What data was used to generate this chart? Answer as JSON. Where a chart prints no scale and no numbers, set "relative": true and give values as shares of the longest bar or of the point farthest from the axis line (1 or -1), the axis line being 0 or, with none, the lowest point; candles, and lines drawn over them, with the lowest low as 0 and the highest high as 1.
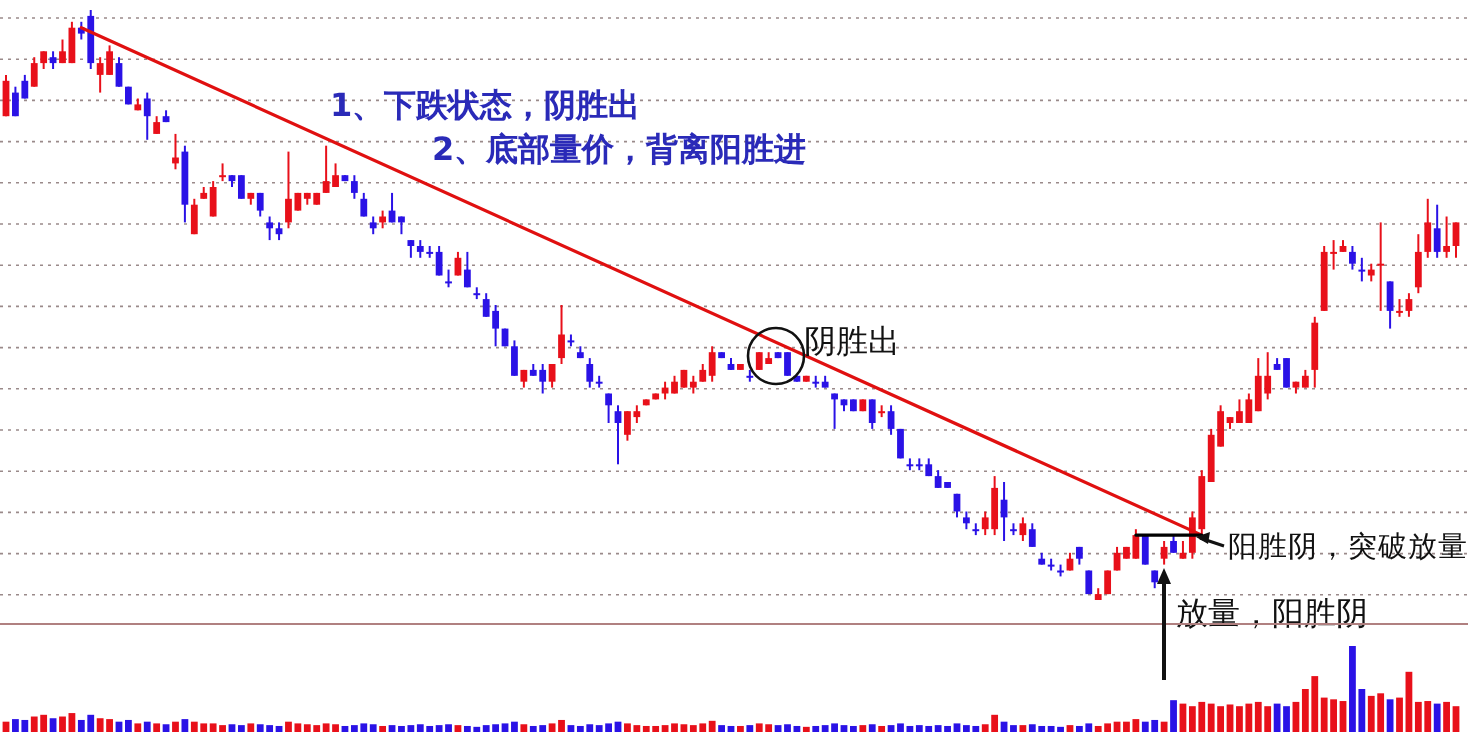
{
  "chart_data": [
    {
      "type": "candlestick",
      "relative": true,
      "grid": true,
      "categories": [
        null,
        null,
        null,
        null,
        null,
        null,
        null,
        null,
        null,
        null,
        null,
        null,
        null,
        null,
        null,
        null,
        null,
        null,
        null,
        null,
        null,
        null,
        null,
        null,
        null,
        null,
        null,
        null,
        null,
        null,
        null,
        null,
        null,
        null,
        null,
        null,
        null,
        null,
        null,
        null,
        null,
        null,
        null,
        null,
        null,
        null,
        null,
        null,
        null,
        null,
        null,
        null,
        null,
        null,
        null,
        null,
        null,
        null,
        null,
        null,
        null,
        null,
        null,
        null,
        null,
        null,
        null,
        null,
        null,
        null,
        null,
        null,
        null,
        null,
        null,
        null,
        null,
        null,
        null,
        null,
        null,
        null,
        null,
        null,
        null,
        null,
        null,
        null,
        null,
        null,
        null,
        null,
        null,
        null,
        null,
        null,
        null,
        null,
        null,
        null,
        null,
        null,
        null,
        null,
        null,
        null,
        null,
        null,
        null,
        null,
        null,
        null,
        null,
        null,
        null,
        null,
        null,
        null,
        null,
        null,
        null,
        null,
        null,
        null,
        null,
        null,
        null,
        null,
        null,
        null,
        null,
        null,
        null,
        null,
        null,
        null,
        null,
        null,
        null,
        null,
        null,
        null,
        null,
        null,
        null,
        null,
        null,
        null,
        null,
        null,
        null,
        null,
        null,
        null,
        null
      ],
      "ohlc": [
        [
          0.82,
          0.89,
          0.82,
          0.88
        ],
        [
          0.86,
          0.87,
          0.82,
          0.82
        ],
        [
          0.88,
          0.89,
          0.85,
          0.85
        ],
        [
          0.87,
          0.92,
          0.87,
          0.91
        ],
        [
          0.91,
          0.93,
          0.9,
          0.93
        ],
        [
          0.92,
          0.93,
          0.9,
          0.91
        ],
        [
          0.91,
          0.95,
          0.91,
          0.93
        ],
        [
          0.91,
          0.98,
          0.91,
          0.97
        ],
        [
          0.97,
          0.98,
          0.95,
          0.96
        ],
        [
          0.99,
          1.0,
          0.9,
          0.91
        ],
        [
          0.89,
          0.92,
          0.86,
          0.91
        ],
        [
          0.89,
          0.94,
          0.89,
          0.93
        ],
        [
          0.91,
          0.92,
          0.87,
          0.87
        ],
        [
          0.87,
          0.87,
          0.84,
          0.84
        ],
        [
          0.83,
          0.85,
          0.83,
          0.84
        ],
        [
          0.85,
          0.86,
          0.78,
          0.82
        ],
        [
          0.79,
          0.82,
          0.79,
          0.81
        ],
        [
          0.82,
          0.83,
          0.81,
          0.81
        ],
        [
          0.74,
          0.79,
          0.73,
          0.75
        ],
        [
          0.76,
          0.77,
          0.64,
          0.67
        ],
        [
          0.62,
          0.68,
          0.62,
          0.67
        ],
        [
          0.68,
          0.7,
          0.68,
          0.69
        ],
        [
          0.65,
          0.71,
          0.65,
          0.7
        ],
        [
          0.72,
          0.74,
          0.71,
          0.72
        ],
        [
          0.72,
          0.72,
          0.7,
          0.71
        ],
        [
          0.72,
          0.72,
          0.68,
          0.68
        ],
        [
          0.68,
          0.69,
          0.67,
          0.69
        ],
        [
          0.69,
          0.69,
          0.65,
          0.66
        ],
        [
          0.64,
          0.65,
          0.61,
          0.63
        ],
        [
          0.63,
          0.64,
          0.61,
          0.62
        ],
        [
          0.64,
          0.76,
          0.63,
          0.68
        ],
        [
          0.66,
          0.69,
          0.66,
          0.69
        ],
        [
          0.68,
          0.69,
          0.67,
          0.69
        ],
        [
          0.67,
          0.69,
          0.67,
          0.69
        ],
        [
          0.69,
          0.77,
          0.69,
          0.71
        ],
        [
          0.7,
          0.74,
          0.7,
          0.72
        ],
        [
          0.72,
          0.72,
          0.71,
          0.71
        ],
        [
          0.71,
          0.72,
          0.68,
          0.69
        ],
        [
          0.68,
          0.69,
          0.65,
          0.65
        ],
        [
          0.64,
          0.65,
          0.62,
          0.63
        ],
        [
          0.64,
          0.66,
          0.63,
          0.65
        ],
        [
          0.66,
          0.69,
          0.64,
          0.64
        ],
        [
          0.65,
          0.65,
          0.62,
          0.64
        ],
        [
          0.61,
          0.61,
          0.58,
          0.6
        ],
        [
          0.6,
          0.61,
          0.58,
          0.59
        ],
        [
          0.59,
          0.6,
          0.58,
          0.59
        ],
        [
          0.59,
          0.6,
          0.55,
          0.55
        ],
        [
          0.54,
          0.56,
          0.53,
          0.54
        ],
        [
          0.55,
          0.59,
          0.55,
          0.58
        ],
        [
          0.56,
          0.59,
          0.53,
          0.53
        ],
        [
          0.52,
          0.53,
          0.51,
          0.52
        ],
        [
          0.51,
          0.52,
          0.48,
          0.48
        ],
        [
          0.49,
          0.5,
          0.43,
          0.46
        ],
        [
          0.46,
          0.46,
          0.43,
          0.43
        ],
        [
          0.43,
          0.44,
          0.38,
          0.38
        ],
        [
          0.37,
          0.39,
          0.36,
          0.39
        ],
        [
          0.39,
          0.4,
          0.38,
          0.38
        ],
        [
          0.39,
          0.4,
          0.35,
          0.37
        ],
        [
          0.37,
          0.4,
          0.36,
          0.4
        ],
        [
          0.41,
          0.5,
          0.4,
          0.45
        ],
        [
          0.44,
          0.45,
          0.43,
          0.44
        ],
        [
          0.42,
          0.43,
          0.41,
          0.41
        ],
        [
          0.4,
          0.41,
          0.36,
          0.37
        ],
        [
          0.37,
          0.38,
          0.36,
          0.37
        ],
        [
          0.35,
          0.35,
          0.3,
          0.33
        ],
        [
          0.32,
          0.33,
          0.23,
          0.3
        ],
        [
          0.28,
          0.32,
          0.27,
          0.32
        ],
        [
          0.31,
          0.33,
          0.3,
          0.32
        ],
        [
          0.33,
          0.34,
          0.33,
          0.34
        ],
        [
          0.34,
          0.35,
          0.34,
          0.35
        ],
        [
          0.35,
          0.37,
          0.34,
          0.36
        ],
        [
          0.35,
          0.38,
          0.35,
          0.37
        ],
        [
          0.36,
          0.39,
          0.36,
          0.39
        ],
        [
          0.36,
          0.38,
          0.35,
          0.37
        ],
        [
          0.37,
          0.4,
          0.37,
          0.39
        ],
        [
          0.38,
          0.43,
          0.37,
          0.42
        ],
        [
          0.42,
          0.42,
          0.41,
          0.41
        ],
        [
          0.4,
          0.41,
          0.39,
          0.39
        ],
        [
          0.39,
          0.4,
          0.39,
          0.4
        ],
        [
          0.38,
          0.39,
          0.37,
          0.38
        ],
        [
          0.39,
          0.42,
          0.39,
          0.42
        ],
        [
          0.4,
          0.42,
          0.4,
          0.41
        ],
        [
          0.42,
          0.42,
          0.41,
          0.41
        ],
        [
          0.42,
          0.42,
          0.38,
          0.38
        ],
        [
          0.38,
          0.38,
          0.37,
          0.37
        ],
        [
          0.37,
          0.38,
          0.37,
          0.38
        ],
        [
          0.37,
          0.38,
          0.36,
          0.37
        ],
        [
          0.37,
          0.38,
          0.36,
          0.36
        ],
        [
          0.35,
          0.35,
          0.29,
          0.34
        ],
        [
          0.34,
          0.34,
          0.32,
          0.33
        ],
        [
          0.34,
          0.34,
          0.32,
          0.32
        ],
        [
          0.32,
          0.34,
          0.32,
          0.34
        ],
        [
          0.34,
          0.34,
          0.29,
          0.3
        ],
        [
          0.32,
          0.33,
          0.31,
          0.32
        ],
        [
          0.32,
          0.33,
          0.28,
          0.29
        ],
        [
          0.29,
          0.29,
          0.24,
          0.24
        ],
        [
          0.23,
          0.24,
          0.22,
          0.23
        ],
        [
          0.23,
          0.24,
          0.22,
          0.23
        ],
        [
          0.23,
          0.24,
          0.21,
          0.21
        ],
        [
          0.21,
          0.22,
          0.19,
          0.19
        ],
        [
          0.2,
          0.2,
          0.19,
          0.19
        ],
        [
          0.18,
          0.18,
          0.14,
          0.15
        ],
        [
          0.14,
          0.15,
          0.12,
          0.13
        ],
        [
          0.12,
          0.13,
          0.11,
          0.12
        ],
        [
          0.12,
          0.15,
          0.11,
          0.14
        ],
        [
          0.12,
          0.21,
          0.11,
          0.19
        ],
        [
          0.17,
          0.2,
          0.1,
          0.14
        ],
        [
          0.12,
          0.13,
          0.11,
          0.12
        ],
        [
          0.11,
          0.14,
          0.1,
          0.13
        ],
        [
          0.12,
          0.13,
          0.09,
          0.09
        ],
        [
          0.07,
          0.08,
          0.06,
          0.06
        ],
        [
          0.06,
          0.07,
          0.05,
          0.06
        ],
        [
          0.05,
          0.06,
          0.04,
          0.05
        ],
        [
          0.05,
          0.08,
          0.05,
          0.07
        ],
        [
          0.09,
          0.09,
          0.06,
          0.07
        ],
        [
          0.05,
          0.05,
          0.01,
          0.01
        ],
        [
          0.0,
          0.02,
          0.0,
          0.01
        ],
        [
          0.01,
          0.05,
          0.01,
          0.05
        ],
        [
          0.05,
          0.09,
          0.05,
          0.08
        ],
        [
          0.07,
          0.09,
          0.07,
          0.09
        ],
        [
          0.07,
          0.12,
          0.07,
          0.11
        ],
        [
          0.11,
          0.11,
          0.06,
          0.06
        ],
        [
          0.05,
          0.05,
          0.02,
          0.03
        ],
        [
          0.07,
          0.1,
          0.06,
          0.09
        ],
        [
          0.1,
          0.11,
          0.08,
          0.08
        ],
        [
          0.07,
          0.1,
          0.07,
          0.08
        ],
        [
          0.08,
          0.15,
          0.07,
          0.14
        ],
        [
          0.12,
          0.22,
          0.11,
          0.21
        ],
        [
          0.2,
          0.29,
          0.2,
          0.28
        ],
        [
          0.26,
          0.33,
          0.26,
          0.32
        ],
        [
          0.3,
          0.31,
          0.29,
          0.31
        ],
        [
          0.3,
          0.34,
          0.3,
          0.32
        ],
        [
          0.3,
          0.35,
          0.3,
          0.34
        ],
        [
          0.32,
          0.41,
          0.32,
          0.38
        ],
        [
          0.35,
          0.42,
          0.34,
          0.38
        ],
        [
          0.4,
          0.41,
          0.39,
          0.39
        ],
        [
          0.41,
          0.41,
          0.36,
          0.36
        ],
        [
          0.36,
          0.37,
          0.35,
          0.37
        ],
        [
          0.36,
          0.39,
          0.36,
          0.38
        ],
        [
          0.39,
          0.48,
          0.36,
          0.47
        ],
        [
          0.49,
          0.6,
          0.49,
          0.59
        ],
        [
          0.59,
          0.61,
          0.56,
          0.59
        ],
        [
          0.59,
          0.61,
          0.59,
          0.6
        ],
        [
          0.59,
          0.6,
          0.56,
          0.57
        ],
        [
          0.56,
          0.58,
          0.54,
          0.56
        ],
        [
          0.55,
          0.57,
          0.54,
          0.56
        ],
        [
          0.57,
          0.64,
          0.49,
          0.57
        ],
        [
          0.54,
          0.54,
          0.46,
          0.49
        ],
        [
          0.49,
          0.51,
          0.48,
          0.49
        ],
        [
          0.49,
          0.52,
          0.48,
          0.51
        ],
        [
          0.53,
          0.62,
          0.52,
          0.59
        ],
        [
          0.59,
          0.68,
          0.58,
          0.64
        ],
        [
          0.63,
          0.67,
          0.58,
          0.59
        ],
        [
          0.59,
          0.65,
          0.58,
          0.6
        ],
        [
          0.6,
          0.64,
          0.58,
          0.64
        ]
      ],
      "colors": [
        "#e8101a",
        "#2a12e6",
        "#2a12e6",
        "#e8101a",
        "#e8101a",
        "#2a12e6",
        "#e8101a",
        "#e8101a",
        "#2a12e6",
        "#2a12e6",
        "#e8101a",
        "#e8101a",
        "#2a12e6",
        "#2a12e6",
        "#e8101a",
        "#2a12e6",
        "#e8101a",
        "#2a12e6",
        "#e8101a",
        "#2a12e6",
        "#e8101a",
        "#e8101a",
        "#e8101a",
        "#e8101a",
        "#2a12e6",
        "#2a12e6",
        "#e8101a",
        "#2a12e6",
        "#2a12e6",
        "#2a12e6",
        "#e8101a",
        "#e8101a",
        "#e8101a",
        "#e8101a",
        "#e8101a",
        "#e8101a",
        "#2a12e6",
        "#2a12e6",
        "#2a12e6",
        "#2a12e6",
        "#e8101a",
        "#2a12e6",
        "#2a12e6",
        "#2a12e6",
        "#2a12e6",
        "#2a12e6",
        "#2a12e6",
        "#2a12e6",
        "#e8101a",
        "#2a12e6",
        "#2a12e6",
        "#2a12e6",
        "#2a12e6",
        "#2a12e6",
        "#2a12e6",
        "#e8101a",
        "#2a12e6",
        "#2a12e6",
        "#e8101a",
        "#e8101a",
        "#2a12e6",
        "#2a12e6",
        "#2a12e6",
        "#2a12e6",
        "#2a12e6",
        "#2a12e6",
        "#e8101a",
        "#e8101a",
        "#e8101a",
        "#e8101a",
        "#e8101a",
        "#e8101a",
        "#e8101a",
        "#e8101a",
        "#e8101a",
        "#e8101a",
        "#2a12e6",
        "#2a12e6",
        "#e8101a",
        "#2a12e6",
        "#e8101a",
        "#e8101a",
        "#2a12e6",
        "#2a12e6",
        "#2a12e6",
        "#e8101a",
        "#2a12e6",
        "#2a12e6",
        "#2a12e6",
        "#2a12e6",
        "#2a12e6",
        "#e8101a",
        "#2a12e6",
        "#e8101a",
        "#2a12e6",
        "#2a12e6",
        "#2a12e6",
        "#2a12e6",
        "#2a12e6",
        "#2a12e6",
        "#2a12e6",
        "#2a12e6",
        "#2a12e6",
        "#2a12e6",
        "#e8101a",
        "#e8101a",
        "#2a12e6",
        "#2a12e6",
        "#e8101a",
        "#2a12e6",
        "#2a12e6",
        "#2a12e6",
        "#2a12e6",
        "#e8101a",
        "#2a12e6",
        "#2a12e6",
        "#e8101a",
        "#e8101a",
        "#e8101a",
        "#e8101a",
        "#e8101a",
        "#2a12e6",
        "#2a12e6",
        "#e8101a",
        "#2a12e6",
        "#e8101a",
        "#e8101a",
        "#e8101a",
        "#e8101a",
        "#e8101a",
        "#e8101a",
        "#e8101a",
        "#e8101a",
        "#e8101a",
        "#e8101a",
        "#2a12e6",
        "#2a12e6",
        "#e8101a",
        "#e8101a",
        "#e8101a",
        "#e8101a",
        "#e8101a",
        "#e8101a",
        "#2a12e6",
        "#2a12e6",
        "#e8101a",
        "#e8101a",
        "#2a12e6",
        "#e8101a",
        "#e8101a",
        "#e8101a",
        "#e8101a",
        "#2a12e6",
        "#e8101a",
        "#e8101a"
      ],
      "series": [
        {
          "type": "line",
          "color": "#e01010",
          "values": [
            null,
            null,
            null,
            null,
            null,
            null,
            null,
            null,
            0.97,
            null,
            null,
            null,
            null,
            null,
            null,
            null,
            null,
            null,
            null,
            null,
            null,
            null,
            null,
            null,
            null,
            null,
            null,
            null,
            null,
            null,
            null,
            null,
            null,
            null,
            null,
            null,
            null,
            null,
            null,
            null,
            null,
            null,
            null,
            null,
            null,
            null,
            null,
            null,
            null,
            null,
            null,
            null,
            null,
            null,
            null,
            null,
            null,
            null,
            null,
            null,
            null,
            null,
            null,
            null,
            null,
            null,
            null,
            null,
            null,
            null,
            null,
            null,
            null,
            null,
            null,
            null,
            null,
            null,
            null,
            null,
            null,
            null,
            null,
            null,
            null,
            null,
            null,
            null,
            null,
            null,
            null,
            null,
            null,
            null,
            null,
            null,
            null,
            null,
            null,
            null,
            null,
            null,
            null,
            null,
            null,
            null,
            null,
            null,
            null,
            null,
            null,
            null,
            null,
            null,
            null,
            null,
            null,
            null,
            null,
            null,
            null,
            null,
            null,
            null,
            null,
            null,
            null,
            0.11,
            null,
            null,
            null,
            null,
            null,
            null,
            null,
            null,
            null,
            null,
            null,
            null,
            null,
            null,
            null,
            null,
            null,
            null,
            null,
            null,
            null,
            null,
            null,
            null,
            null,
            null,
            null
          ]
        },
        {
          "type": "line",
          "color": "#000000",
          "values": [
            null,
            null,
            null,
            null,
            null,
            null,
            null,
            null,
            null,
            null,
            null,
            null,
            null,
            null,
            null,
            null,
            null,
            null,
            null,
            null,
            null,
            null,
            null,
            null,
            null,
            null,
            null,
            null,
            null,
            null,
            null,
            null,
            null,
            null,
            null,
            null,
            null,
            null,
            null,
            null,
            null,
            null,
            null,
            null,
            null,
            null,
            null,
            null,
            null,
            null,
            null,
            null,
            null,
            null,
            null,
            null,
            null,
            null,
            null,
            null,
            null,
            null,
            null,
            null,
            null,
            null,
            null,
            null,
            null,
            null,
            null,
            null,
            null,
            null,
            null,
            null,
            null,
            null,
            null,
            null,
            null,
            null,
            null,
            null,
            null,
            null,
            null,
            null,
            null,
            null,
            null,
            null,
            null,
            null,
            null,
            null,
            null,
            null,
            null,
            null,
            null,
            null,
            null,
            null,
            null,
            null,
            null,
            null,
            null,
            null,
            null,
            null,
            null,
            null,
            null,
            null,
            null,
            null,
            null,
            null,
            0.11,
            null,
            null,
            null,
            null,
            null,
            null,
            0.11,
            null,
            null,
            null,
            null,
            null,
            null,
            null,
            null,
            null,
            null,
            null,
            null,
            null,
            null,
            null,
            null,
            null,
            null,
            null,
            null,
            null,
            null,
            null,
            null,
            null,
            null,
            null
          ]
        }
      ],
      "annotations": [
        "1、下跌状态，阴胜出",
        "2、底部量价，背离阳胜进",
        "阴胜出",
        "阳胜阴，突破放量",
        "放量，阳胜阴"
      ]
    },
    {
      "type": "bar",
      "relative": true,
      "categories": [
        null,
        null,
        null,
        null,
        null,
        null,
        null,
        null,
        null,
        null,
        null,
        null,
        null,
        null,
        null,
        null,
        null,
        null,
        null,
        null,
        null,
        null,
        null,
        null,
        null,
        null,
        null,
        null,
        null,
        null,
        null,
        null,
        null,
        null,
        null,
        null,
        null,
        null,
        null,
        null,
        null,
        null,
        null,
        null,
        null,
        null,
        null,
        null,
        null,
        null,
        null,
        null,
        null,
        null,
        null,
        null,
        null,
        null,
        null,
        null,
        null,
        null,
        null,
        null,
        null,
        null,
        null,
        null,
        null,
        null,
        null,
        null,
        null,
        null,
        null,
        null,
        null,
        null,
        null,
        null,
        null,
        null,
        null,
        null,
        null,
        null,
        null,
        null,
        null,
        null,
        null,
        null,
        null,
        null,
        null,
        null,
        null,
        null,
        null,
        null,
        null,
        null,
        null,
        null,
        null,
        null,
        null,
        null,
        null,
        null,
        null,
        null,
        null,
        null,
        null,
        null,
        null,
        null,
        null,
        null,
        null,
        null,
        null,
        null,
        null,
        null,
        null,
        null,
        null,
        null,
        null,
        null,
        null,
        null,
        null,
        null,
        null,
        null,
        null,
        null,
        null,
        null,
        null,
        null,
        null,
        null,
        null,
        null,
        null,
        null,
        null,
        null,
        null,
        null,
        null
      ],
      "values": [
        0.12,
        0.15,
        0.14,
        0.18,
        0.2,
        0.16,
        0.18,
        0.22,
        0.14,
        0.2,
        0.16,
        0.15,
        0.12,
        0.14,
        0.1,
        0.12,
        0.1,
        0.09,
        0.12,
        0.15,
        0.12,
        0.1,
        0.1,
        0.08,
        0.09,
        0.08,
        0.1,
        0.09,
        0.08,
        0.07,
        0.12,
        0.1,
        0.09,
        0.08,
        0.1,
        0.09,
        0.07,
        0.08,
        0.1,
        0.09,
        0.07,
        0.08,
        0.07,
        0.08,
        0.09,
        0.07,
        0.08,
        0.09,
        0.08,
        0.07,
        0.06,
        0.08,
        0.09,
        0.1,
        0.12,
        0.09,
        0.07,
        0.08,
        0.1,
        0.14,
        0.08,
        0.07,
        0.09,
        0.08,
        0.1,
        0.12,
        0.1,
        0.08,
        0.07,
        0.07,
        0.08,
        0.1,
        0.09,
        0.08,
        0.1,
        0.13,
        0.08,
        0.07,
        0.07,
        0.08,
        0.1,
        0.09,
        0.08,
        0.09,
        0.07,
        0.06,
        0.07,
        0.08,
        0.1,
        0.08,
        0.07,
        0.08,
        0.09,
        0.07,
        0.08,
        0.1,
        0.07,
        0.08,
        0.07,
        0.08,
        0.07,
        0.1,
        0.08,
        0.07,
        0.09,
        0.2,
        0.12,
        0.08,
        0.08,
        0.09,
        0.07,
        0.07,
        0.06,
        0.08,
        0.07,
        0.1,
        0.07,
        0.1,
        0.12,
        0.12,
        0.15,
        0.12,
        0.14,
        0.12,
        0.37,
        0.33,
        0.3,
        0.35,
        0.33,
        0.3,
        0.32,
        0.3,
        0.33,
        0.35,
        0.3,
        0.33,
        0.3,
        0.35,
        0.5,
        0.65,
        0.4,
        0.38,
        0.36,
        1.0,
        0.5,
        0.42,
        0.45,
        0.38,
        0.4,
        0.7,
        0.35,
        0.36,
        0.33,
        0.35,
        0.3
      ],
      "colors": [
        "#e8101a",
        "#2a12e6",
        "#2a12e6",
        "#e8101a",
        "#e8101a",
        "#2a12e6",
        "#e8101a",
        "#e8101a",
        "#2a12e6",
        "#2a12e6",
        "#e8101a",
        "#e8101a",
        "#2a12e6",
        "#2a12e6",
        "#e8101a",
        "#2a12e6",
        "#e8101a",
        "#2a12e6",
        "#e8101a",
        "#2a12e6",
        "#e8101a",
        "#e8101a",
        "#e8101a",
        "#e8101a",
        "#2a12e6",
        "#2a12e6",
        "#e8101a",
        "#2a12e6",
        "#2a12e6",
        "#2a12e6",
        "#e8101a",
        "#e8101a",
        "#e8101a",
        "#e8101a",
        "#e8101a",
        "#e8101a",
        "#2a12e6",
        "#2a12e6",
        "#2a12e6",
        "#2a12e6",
        "#e8101a",
        "#2a12e6",
        "#2a12e6",
        "#2a12e6",
        "#2a12e6",
        "#2a12e6",
        "#2a12e6",
        "#2a12e6",
        "#e8101a",
        "#2a12e6",
        "#2a12e6",
        "#2a12e6",
        "#2a12e6",
        "#2a12e6",
        "#2a12e6",
        "#e8101a",
        "#2a12e6",
        "#2a12e6",
        "#e8101a",
        "#e8101a",
        "#2a12e6",
        "#2a12e6",
        "#2a12e6",
        "#2a12e6",
        "#2a12e6",
        "#2a12e6",
        "#e8101a",
        "#e8101a",
        "#e8101a",
        "#e8101a",
        "#e8101a",
        "#e8101a",
        "#e8101a",
        "#e8101a",
        "#e8101a",
        "#e8101a",
        "#2a12e6",
        "#2a12e6",
        "#e8101a",
        "#2a12e6",
        "#e8101a",
        "#e8101a",
        "#2a12e6",
        "#2a12e6",
        "#2a12e6",
        "#e8101a",
        "#2a12e6",
        "#2a12e6",
        "#2a12e6",
        "#2a12e6",
        "#2a12e6",
        "#e8101a",
        "#2a12e6",
        "#e8101a",
        "#2a12e6",
        "#2a12e6",
        "#2a12e6",
        "#2a12e6",
        "#2a12e6",
        "#2a12e6",
        "#2a12e6",
        "#2a12e6",
        "#2a12e6",
        "#2a12e6",
        "#e8101a",
        "#e8101a",
        "#2a12e6",
        "#2a12e6",
        "#e8101a",
        "#2a12e6",
        "#2a12e6",
        "#2a12e6",
        "#2a12e6",
        "#e8101a",
        "#2a12e6",
        "#2a12e6",
        "#e8101a",
        "#e8101a",
        "#e8101a",
        "#e8101a",
        "#e8101a",
        "#2a12e6",
        "#2a12e6",
        "#e8101a",
        "#2a12e6",
        "#e8101a",
        "#e8101a",
        "#e8101a",
        "#e8101a",
        "#e8101a",
        "#e8101a",
        "#e8101a",
        "#e8101a",
        "#e8101a",
        "#e8101a",
        "#2a12e6",
        "#2a12e6",
        "#e8101a",
        "#e8101a",
        "#e8101a",
        "#e8101a",
        "#e8101a",
        "#e8101a",
        "#2a12e6",
        "#2a12e6",
        "#e8101a",
        "#e8101a",
        "#2a12e6",
        "#e8101a",
        "#e8101a",
        "#e8101a",
        "#e8101a",
        "#2a12e6",
        "#e8101a",
        "#e8101a"
      ]
    }
  ]
}
